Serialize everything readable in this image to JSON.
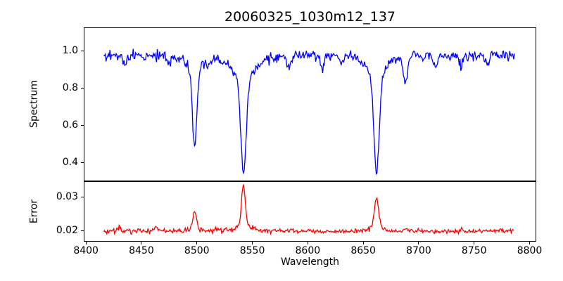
{
  "figure": {
    "title": "20060325_1030m12_137",
    "xlabel": "Wavelength",
    "background_color": "#ffffff",
    "axis_color": "#000000",
    "xlim": [
      8398,
      8806
    ],
    "xticks": [
      8400,
      8450,
      8500,
      8550,
      8600,
      8650,
      8700,
      8750,
      8800
    ]
  },
  "chart_data": [
    {
      "type": "line",
      "name": "spectrum",
      "ylabel": "Spectrum",
      "line_color": "#0000ff",
      "ylim": [
        0.3,
        1.125
      ],
      "yticks": [
        {
          "value": 0.4,
          "label": "0.4"
        },
        {
          "value": 0.6,
          "label": "0.6"
        },
        {
          "value": 0.8,
          "label": "0.8"
        },
        {
          "value": 1.0,
          "label": "1.0"
        }
      ],
      "x_start": 8416,
      "x_end": 8787,
      "x_step": 0.7,
      "continuum_level": 0.972,
      "noise_sigma": 0.013,
      "noise_seed": 7,
      "features": [
        {
          "center": 8498,
          "amplitude": -0.405,
          "sigma": 2.0,
          "component": "core",
          "observed_min": 0.49
        },
        {
          "center": 8498,
          "amplitude": -0.075,
          "sigma": 7,
          "component": "wings"
        },
        {
          "center": 8542,
          "amplitude": -0.51,
          "sigma": 2.4,
          "component": "core",
          "observed_min": 0.345
        },
        {
          "center": 8542,
          "amplitude": -0.115,
          "sigma": 11,
          "component": "wings"
        },
        {
          "center": 8662,
          "amplitude": -0.52,
          "sigma": 2.4,
          "component": "core",
          "observed_min": 0.35
        },
        {
          "center": 8662,
          "amplitude": -0.1,
          "sigma": 9,
          "component": "wings"
        },
        {
          "center": 8435,
          "amplitude": -0.05,
          "sigma": 1.5
        },
        {
          "center": 8452,
          "amplitude": -0.035,
          "sigma": 1.2
        },
        {
          "center": 8475,
          "amplitude": -0.048,
          "sigma": 1.5
        },
        {
          "center": 8510,
          "amplitude": -0.055,
          "sigma": 1.4
        },
        {
          "center": 8583,
          "amplitude": -0.07,
          "sigma": 1.6
        },
        {
          "center": 8613,
          "amplitude": -0.075,
          "sigma": 1.6
        },
        {
          "center": 8631,
          "amplitude": -0.05,
          "sigma": 1.3
        },
        {
          "center": 8688,
          "amplitude": -0.14,
          "sigma": 1.8,
          "observed_min": 0.83
        },
        {
          "center": 8715,
          "amplitude": -0.065,
          "sigma": 1.5
        },
        {
          "center": 8738,
          "amplitude": -0.06,
          "sigma": 1.4
        },
        {
          "center": 8762,
          "amplitude": -0.05,
          "sigma": 1.4
        }
      ]
    },
    {
      "type": "line",
      "name": "error",
      "ylabel": "Error",
      "line_color": "#ff0000",
      "ylim": [
        0.0168,
        0.0346
      ],
      "yticks": [
        {
          "value": 0.02,
          "label": "0.02"
        },
        {
          "value": 0.03,
          "label": "0.03"
        }
      ],
      "x_start": 8416,
      "x_end": 8786,
      "x_step": 0.7,
      "continuum_level": 0.0199,
      "noise_sigma": 0.00035,
      "noise_seed": 3,
      "features": [
        {
          "center": 8498,
          "amplitude": 0.005,
          "sigma": 1.6,
          "component": "core",
          "observed_peak": 0.0255
        },
        {
          "center": 8498,
          "amplitude": 0.0008,
          "sigma": 5,
          "component": "wings"
        },
        {
          "center": 8542,
          "amplitude": 0.0122,
          "sigma": 1.7,
          "component": "core",
          "observed_peak": 0.0335
        },
        {
          "center": 8542,
          "amplitude": 0.0014,
          "sigma": 8,
          "component": "wings"
        },
        {
          "center": 8662,
          "amplitude": 0.0083,
          "sigma": 1.9,
          "component": "core",
          "observed_peak": 0.0295
        },
        {
          "center": 8662,
          "amplitude": 0.0012,
          "sigma": 6,
          "component": "wings"
        },
        {
          "center": 8430,
          "amplitude": 0.0012,
          "sigma": 1.2
        },
        {
          "center": 8463,
          "amplitude": 0.0013,
          "sigma": 1.3
        },
        {
          "center": 8517,
          "amplitude": 0.0008,
          "sigma": 1.5
        },
        {
          "center": 8585,
          "amplitude": 0.0006,
          "sigma": 1.5
        },
        {
          "center": 8688,
          "amplitude": 0.001,
          "sigma": 1.5
        },
        {
          "center": 8740,
          "amplitude": 0.0006,
          "sigma": 1.5
        }
      ]
    }
  ]
}
